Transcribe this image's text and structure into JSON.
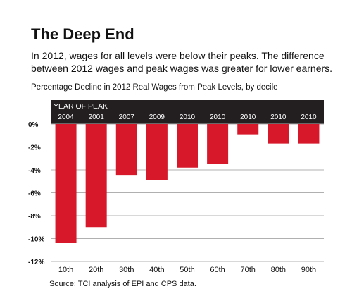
{
  "header": {
    "title": "The Deep End",
    "subtitle": "In 2012, wages for all levels were below their peaks. The difference between 2012 wages and peak wages was greater for lower earners."
  },
  "chart_heading": "Percentage Decline in 2012 Real Wages from Peak Levels, by decile",
  "source": "Source: TCI analysis of EPI and CPS data.",
  "chart_data": {
    "type": "bar",
    "title": "Percentage Decline in 2012 Real Wages from Peak Levels, by decile",
    "xlabel": "",
    "ylabel": "",
    "categories": [
      "10th",
      "20th",
      "30th",
      "40th",
      "50th",
      "60th",
      "70th",
      "80th",
      "90th"
    ],
    "values": [
      -10.4,
      -9.0,
      -4.5,
      -4.9,
      -3.8,
      -3.5,
      -0.9,
      -1.7,
      -1.7
    ],
    "peak_year_label": "YEAR OF PEAK",
    "peak_years": [
      "2004",
      "2001",
      "2007",
      "2009",
      "2010",
      "2010",
      "2010",
      "2010",
      "2010"
    ],
    "ylim": [
      -12,
      0
    ],
    "yticks": [
      0,
      -2,
      -4,
      -6,
      -8,
      -10,
      -12
    ],
    "ytick_labels": [
      "0%",
      "-2%",
      "-4%",
      "-6%",
      "-8%",
      "-10%",
      "-12%"
    ],
    "grid": true,
    "bar_color": "#d7182a",
    "band_color": "#231f20",
    "grid_color": "#b0b0b0"
  }
}
